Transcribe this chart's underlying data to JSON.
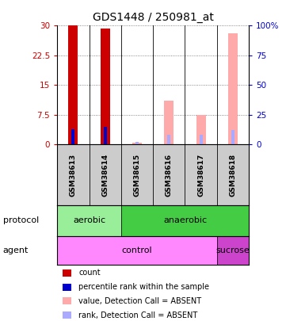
{
  "title": "GDS1448 / 250981_at",
  "samples": [
    "GSM38613",
    "GSM38614",
    "GSM38615",
    "GSM38616",
    "GSM38617",
    "GSM38618"
  ],
  "bar_values": [
    30.0,
    29.3,
    0.5,
    11.0,
    7.5,
    28.0
  ],
  "bar_colors": [
    "#cc0000",
    "#cc0000",
    "#ffaaaa",
    "#ffaaaa",
    "#ffaaaa",
    "#ffaaaa"
  ],
  "rank_values": [
    13.0,
    14.7,
    2.3,
    8.5,
    8.0,
    12.5
  ],
  "rank_colors": [
    "#0000cc",
    "#0000cc",
    "#aaaaff",
    "#aaaaff",
    "#aaaaff",
    "#aaaaff"
  ],
  "ylim_left": [
    0,
    30
  ],
  "ylim_right": [
    0,
    100
  ],
  "yticks_left": [
    0,
    7.5,
    15,
    22.5,
    30
  ],
  "yticks_right": [
    0,
    25,
    50,
    75,
    100
  ],
  "ytick_labels_left": [
    "0",
    "7.5",
    "15",
    "22.5",
    "30"
  ],
  "ytick_labels_right": [
    "0",
    "25",
    "50",
    "75",
    "100%"
  ],
  "left_ycolor": "#cc0000",
  "right_ycolor": "#0000cc",
  "protocol_data": [
    {
      "label": "aerobic",
      "start": 0,
      "end": 2,
      "color": "#99ee99"
    },
    {
      "label": "anaerobic",
      "start": 2,
      "end": 6,
      "color": "#44cc44"
    }
  ],
  "agent_data": [
    {
      "label": "control",
      "start": 0,
      "end": 5,
      "color": "#ff88ff"
    },
    {
      "label": "sucrose",
      "start": 5,
      "end": 6,
      "color": "#cc44cc"
    }
  ],
  "legend_items": [
    {
      "color": "#cc0000",
      "label": "count"
    },
    {
      "color": "#0000cc",
      "label": "percentile rank within the sample"
    },
    {
      "color": "#ffaaaa",
      "label": "value, Detection Call = ABSENT"
    },
    {
      "color": "#aaaaff",
      "label": "rank, Detection Call = ABSENT"
    }
  ],
  "bar_width": 0.3,
  "rank_bar_width": 0.1,
  "grid_color": "#666666",
  "background_color": "#ffffff",
  "sample_box_color": "#cccccc",
  "sample_text_size": 6.5,
  "title_size": 10
}
